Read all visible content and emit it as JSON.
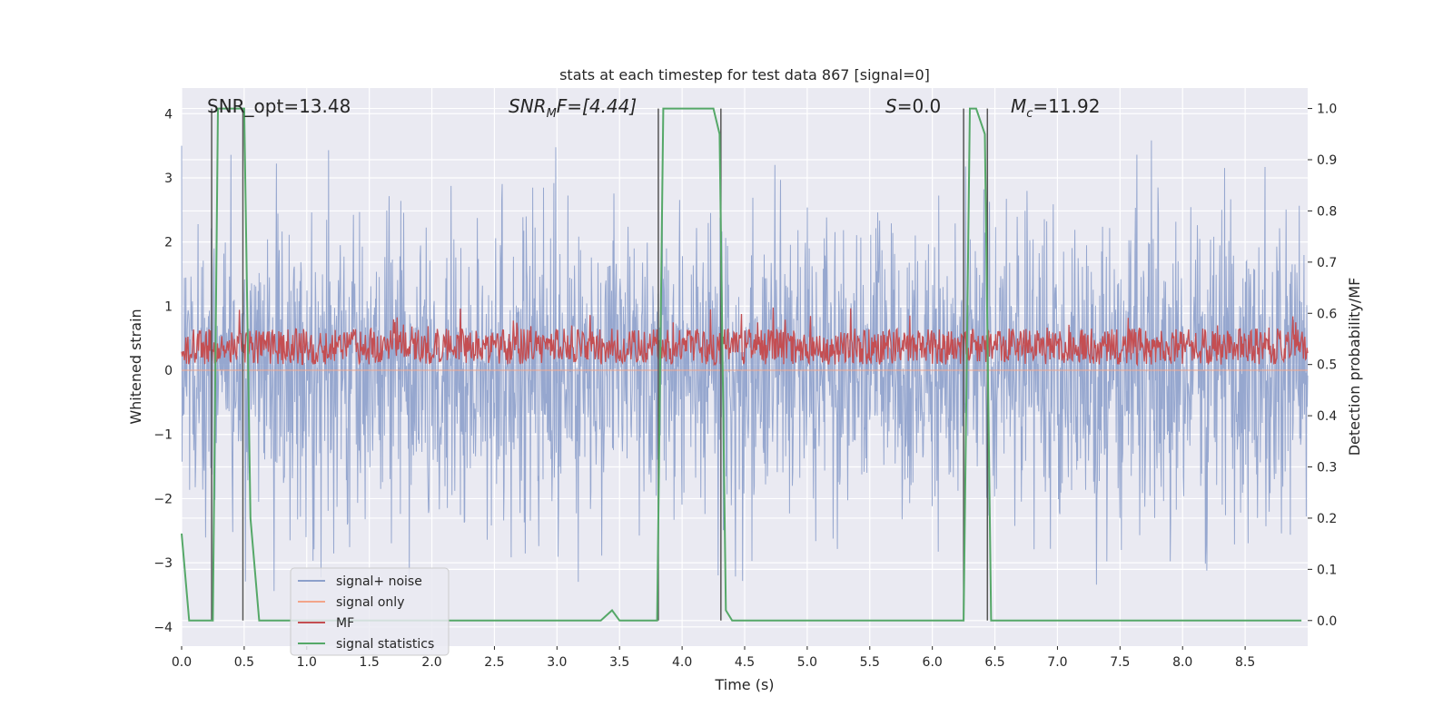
{
  "chart_data": {
    "type": "line",
    "title": "stats at each timestep for test data 867 [signal=0]",
    "xlabel": "Time (s)",
    "ylabel": "Whitened strain",
    "ylabel_right": "Detection probability/MF",
    "xlim": [
      0.0,
      9.0
    ],
    "ylim": [
      -4.3,
      4.4
    ],
    "ylim_right": [
      -0.05,
      1.04
    ],
    "x_ticks": [
      0.0,
      0.5,
      1.0,
      1.5,
      2.0,
      2.5,
      3.0,
      3.5,
      4.0,
      4.5,
      5.0,
      5.5,
      6.0,
      6.5,
      7.0,
      7.5,
      8.0,
      8.5
    ],
    "x_tick_labels": [
      "0.0",
      "0.5",
      "1.0",
      "1.5",
      "2.0",
      "2.5",
      "3.0",
      "3.5",
      "4.0",
      "4.5",
      "5.0",
      "5.5",
      "6.0",
      "6.5",
      "7.0",
      "7.5",
      "8.0",
      "8.5"
    ],
    "y_ticks": [
      -4,
      -3,
      -2,
      -1,
      0,
      1,
      2,
      3,
      4
    ],
    "y_tick_labels": [
      "−4",
      "−3",
      "−2",
      "−1",
      "0",
      "1",
      "2",
      "3",
      "4"
    ],
    "y_right_ticks": [
      0.0,
      0.1,
      0.2,
      0.3,
      0.4,
      0.5,
      0.6,
      0.7,
      0.8,
      0.9,
      1.0
    ],
    "y_right_tick_labels": [
      "0.0",
      "0.1",
      "0.2",
      "0.3",
      "0.4",
      "0.5",
      "0.6",
      "0.7",
      "0.8",
      "0.9",
      "1.0"
    ],
    "grid": true,
    "legend_position": "lower-left",
    "annotations": {
      "snr_opt": "SNR_opt=13.48",
      "snr_mf_main": "SNR",
      "snr_mf_sub": "M",
      "snr_mf_rest": "F=[4.44]",
      "s_main": "S",
      "s_rest": "=0.0",
      "mc_main": "M",
      "mc_sub": "c",
      "mc_rest": "=11.92"
    },
    "series": [
      {
        "name": "signal+ noise",
        "color": "#8da0cb",
        "axis": "left",
        "noise_amplitude": 4.0
      },
      {
        "name": "signal only",
        "color": "#f2a58a",
        "axis": "left",
        "values": "flat 0"
      },
      {
        "name": "MF",
        "color": "#c44e52",
        "axis": "right",
        "center": 0.535,
        "spread": 0.035
      },
      {
        "name": "signal statistics",
        "color": "#55a868",
        "axis": "right",
        "x": [
          0.0,
          0.06,
          0.2,
          0.25,
          0.29,
          0.32,
          0.5,
          0.55,
          0.62,
          0.73,
          0.8,
          1.5,
          3.35,
          3.44,
          3.5,
          3.6,
          3.8,
          3.85,
          3.9,
          4.25,
          4.3,
          4.35,
          4.4,
          4.5,
          6.2,
          6.25,
          6.3,
          6.35,
          6.42,
          6.47,
          6.55,
          8.95
        ],
        "y": [
          0.17,
          0.0,
          0.0,
          0.0,
          1.0,
          1.0,
          1.0,
          0.2,
          0.0,
          0.0,
          0.0,
          0.0,
          0.0,
          0.02,
          0.0,
          0.0,
          0.0,
          1.0,
          1.0,
          1.0,
          0.95,
          0.02,
          0.0,
          0.0,
          0.0,
          0.0,
          1.0,
          1.0,
          0.95,
          0.0,
          0.0,
          0.0
        ]
      }
    ],
    "vertical_markers": [
      0.24,
      0.49,
      3.81,
      4.31,
      6.25,
      6.44
    ]
  }
}
